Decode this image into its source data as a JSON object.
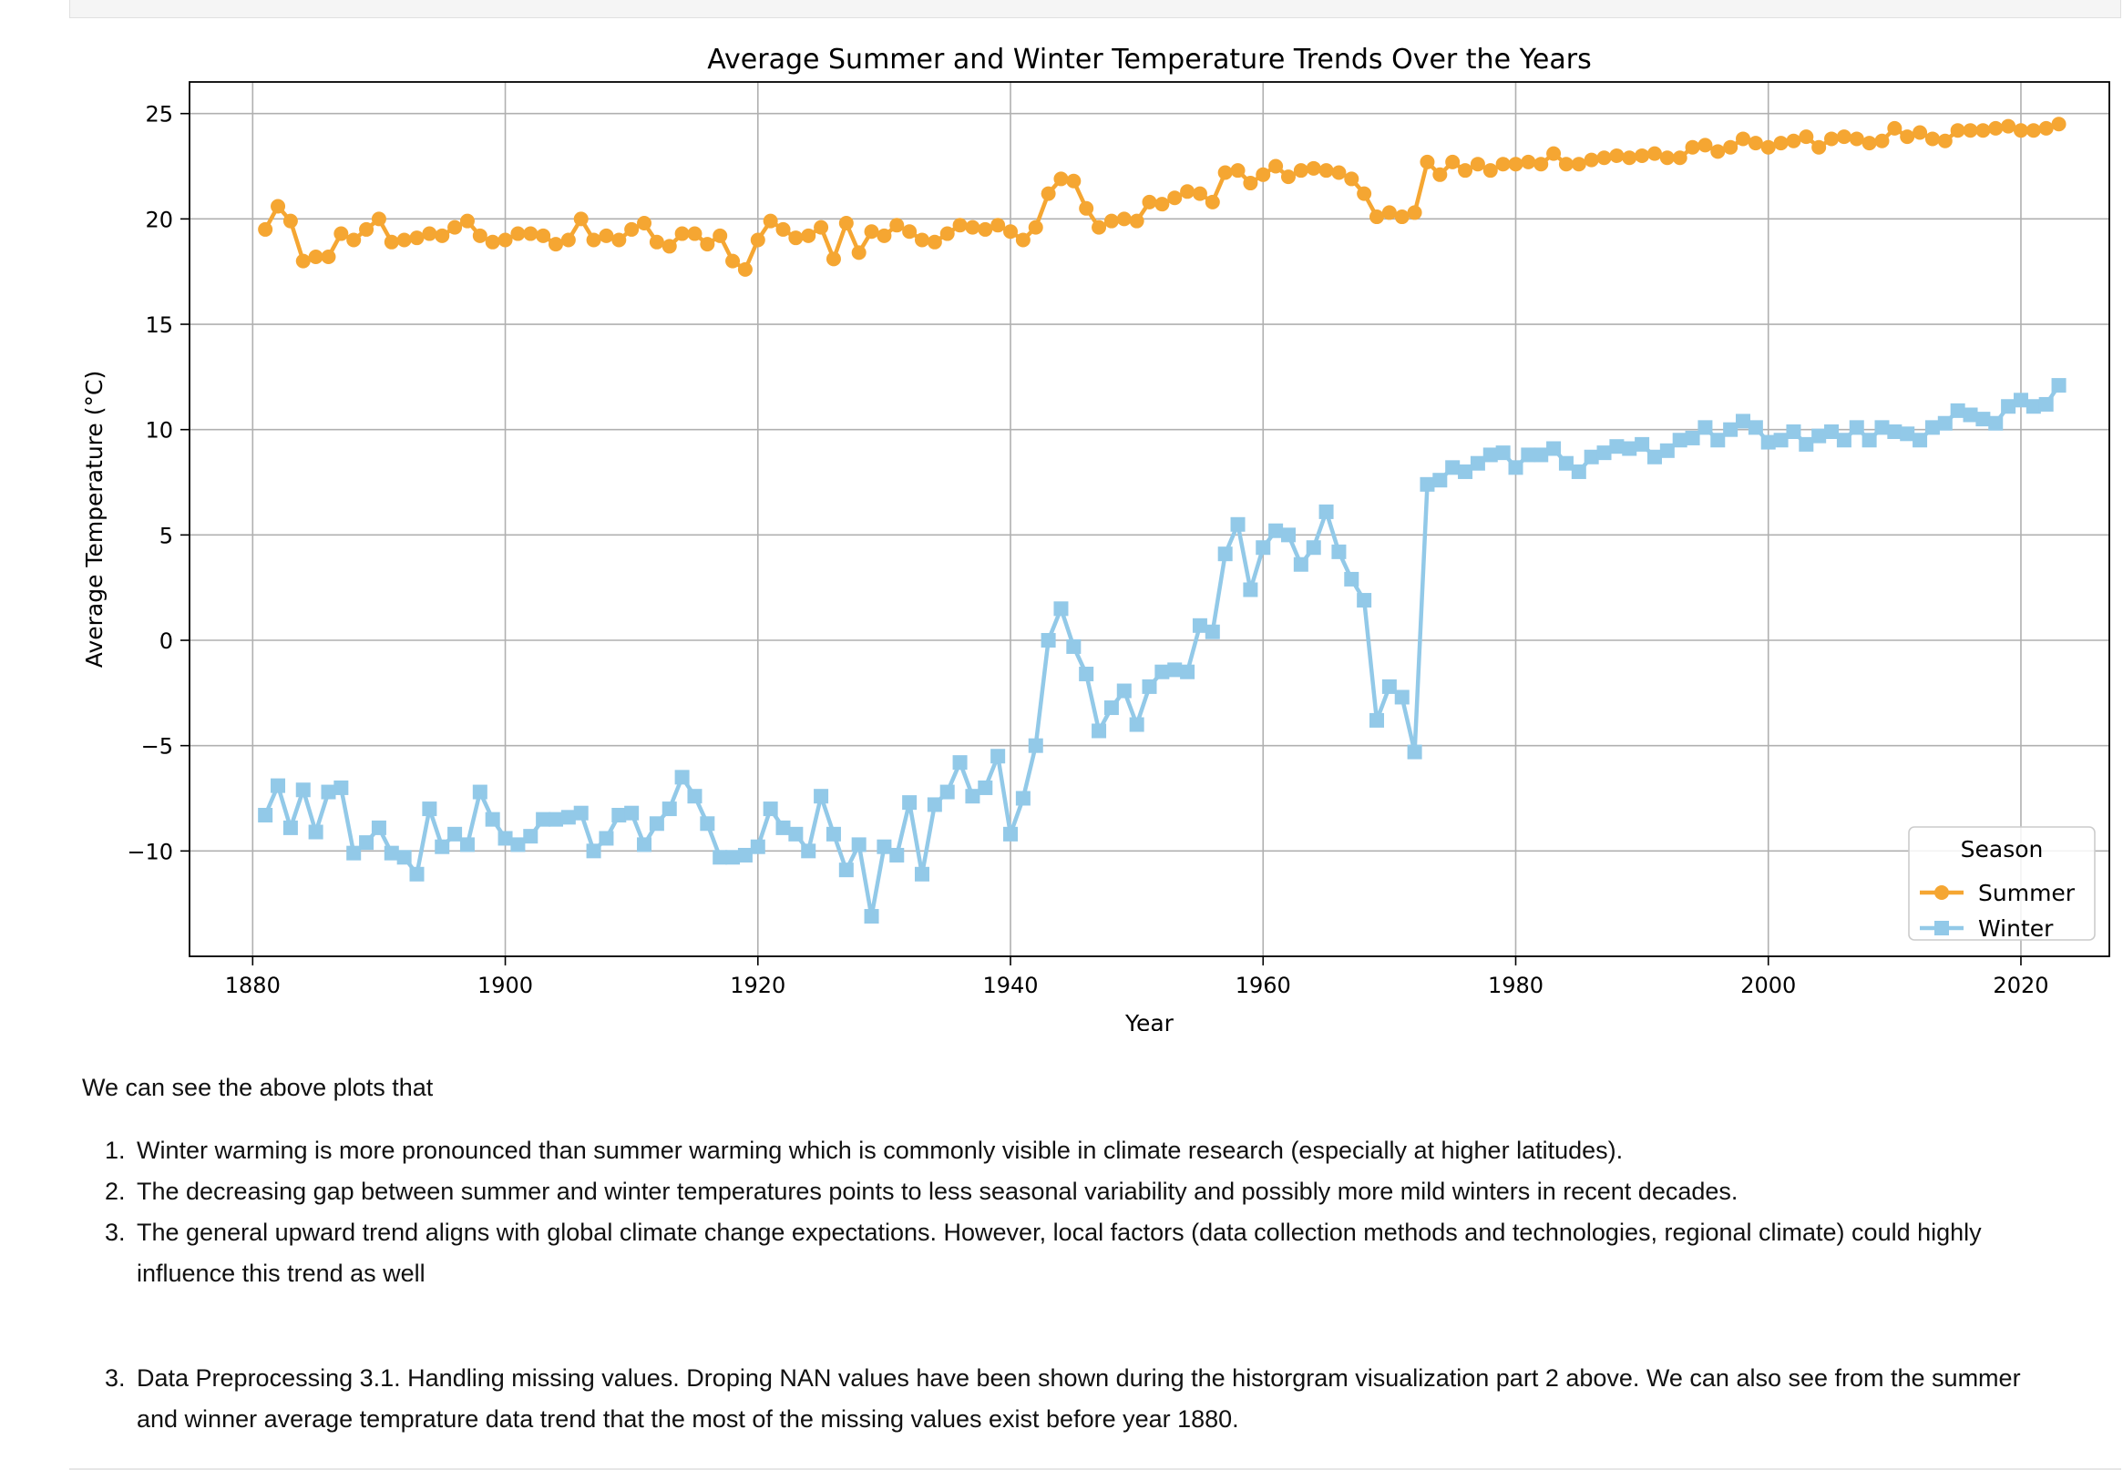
{
  "chart_data": {
    "type": "line",
    "title": "Average Summer and Winter Temperature Trends Over the Years",
    "xlabel": "Year",
    "ylabel": "Average Temperature (°C)",
    "xlim": [
      1875,
      2027
    ],
    "ylim": [
      -15,
      26.5
    ],
    "xticks": [
      1880,
      1900,
      1920,
      1940,
      1960,
      1980,
      2000,
      2020
    ],
    "yticks": [
      -10,
      -5,
      0,
      5,
      10,
      15,
      20,
      25
    ],
    "grid": true,
    "legend": {
      "title": "Season",
      "placement": "lower-right"
    },
    "x": [
      1881,
      1882,
      1883,
      1884,
      1885,
      1886,
      1887,
      1888,
      1889,
      1890,
      1891,
      1892,
      1893,
      1894,
      1895,
      1896,
      1897,
      1898,
      1899,
      1900,
      1901,
      1902,
      1903,
      1904,
      1905,
      1906,
      1907,
      1908,
      1909,
      1910,
      1911,
      1912,
      1913,
      1914,
      1915,
      1916,
      1917,
      1918,
      1919,
      1920,
      1921,
      1922,
      1923,
      1924,
      1925,
      1926,
      1927,
      1928,
      1929,
      1930,
      1931,
      1932,
      1933,
      1934,
      1935,
      1936,
      1937,
      1938,
      1939,
      1940,
      1941,
      1942,
      1943,
      1944,
      1945,
      1946,
      1947,
      1948,
      1949,
      1950,
      1951,
      1952,
      1953,
      1954,
      1955,
      1956,
      1957,
      1958,
      1959,
      1960,
      1961,
      1962,
      1963,
      1964,
      1965,
      1966,
      1967,
      1968,
      1969,
      1970,
      1971,
      1972,
      1973,
      1974,
      1975,
      1976,
      1977,
      1978,
      1979,
      1980,
      1981,
      1982,
      1983,
      1984,
      1985,
      1986,
      1987,
      1988,
      1989,
      1990,
      1991,
      1992,
      1993,
      1994,
      1995,
      1996,
      1997,
      1998,
      1999,
      2000,
      2001,
      2002,
      2003,
      2004,
      2005,
      2006,
      2007,
      2008,
      2009,
      2010,
      2011,
      2012,
      2013,
      2014,
      2015,
      2016,
      2017,
      2018,
      2019,
      2020,
      2021,
      2022,
      2023
    ],
    "series": [
      {
        "name": "Summer",
        "color": "#f5a632",
        "marker": "circle",
        "values": [
          19.5,
          20.6,
          19.9,
          18.0,
          18.2,
          18.2,
          19.3,
          19.0,
          19.5,
          20.0,
          18.9,
          19.0,
          19.1,
          19.3,
          19.2,
          19.6,
          19.9,
          19.2,
          18.9,
          19.0,
          19.3,
          19.3,
          19.2,
          18.8,
          19.0,
          20.0,
          19.0,
          19.2,
          19.0,
          19.5,
          19.8,
          18.9,
          18.7,
          19.3,
          19.3,
          18.8,
          19.2,
          18.0,
          17.6,
          19.0,
          19.9,
          19.5,
          19.1,
          19.2,
          19.6,
          18.1,
          19.8,
          18.4,
          19.4,
          19.2,
          19.7,
          19.4,
          19.0,
          18.9,
          19.3,
          19.7,
          19.6,
          19.5,
          19.7,
          19.4,
          19.0,
          19.6,
          21.2,
          21.9,
          21.8,
          20.5,
          19.6,
          19.9,
          20.0,
          19.9,
          20.8,
          20.7,
          21.0,
          21.3,
          21.2,
          20.8,
          22.2,
          22.3,
          21.7,
          22.1,
          22.5,
          22.0,
          22.3,
          22.4,
          22.3,
          22.2,
          21.9,
          21.2,
          20.1,
          20.3,
          20.1,
          20.3,
          22.7,
          22.1,
          22.7,
          22.3,
          22.6,
          22.3,
          22.6,
          22.6,
          22.7,
          22.6,
          23.1,
          22.6,
          22.6,
          22.8,
          22.9,
          23.0,
          22.9,
          23.0,
          23.1,
          22.9,
          22.9,
          23.4,
          23.5,
          23.2,
          23.4,
          23.8,
          23.6,
          23.4,
          23.6,
          23.7,
          23.9,
          23.4,
          23.8,
          23.9,
          23.8,
          23.6,
          23.7,
          24.3,
          23.9,
          24.1,
          23.8,
          23.7,
          24.2,
          24.2,
          24.2,
          24.3,
          24.4,
          24.2,
          24.2,
          24.3,
          24.5
        ]
      },
      {
        "name": "Winter",
        "color": "#92c9e8",
        "marker": "square",
        "values": [
          -8.3,
          -6.9,
          -8.9,
          -7.1,
          -9.1,
          -7.2,
          -7.0,
          -10.1,
          -9.6,
          -8.9,
          -10.1,
          -10.3,
          -11.1,
          -8.0,
          -9.8,
          -9.2,
          -9.7,
          -7.2,
          -8.5,
          -9.4,
          -9.7,
          -9.3,
          -8.5,
          -8.5,
          -8.4,
          -8.2,
          -10.0,
          -9.4,
          -8.3,
          -8.2,
          -9.7,
          -8.7,
          -8.0,
          -6.5,
          -7.4,
          -8.7,
          -10.3,
          -10.3,
          -10.2,
          -9.8,
          -8.0,
          -8.9,
          -9.2,
          -10.0,
          -7.4,
          -9.2,
          -10.9,
          -9.7,
          -13.1,
          -9.8,
          -10.2,
          -7.7,
          -11.1,
          -7.8,
          -7.2,
          -5.8,
          -7.4,
          -7.0,
          -5.5,
          -9.2,
          -7.5,
          -5.0,
          0.0,
          1.5,
          -0.3,
          -1.6,
          -4.3,
          -3.2,
          -2.4,
          -4.0,
          -2.2,
          -1.5,
          -1.4,
          -1.5,
          0.7,
          0.4,
          4.1,
          5.5,
          2.4,
          4.4,
          5.2,
          5.0,
          3.6,
          4.4,
          6.1,
          4.2,
          2.9,
          1.9,
          -3.8,
          -2.2,
          -2.7,
          -5.3,
          7.4,
          7.6,
          8.2,
          8.0,
          8.4,
          8.8,
          8.9,
          8.2,
          8.8,
          8.8,
          9.1,
          8.4,
          8.0,
          8.7,
          8.9,
          9.2,
          9.1,
          9.3,
          8.7,
          9.0,
          9.5,
          9.6,
          10.1,
          9.5,
          10.0,
          10.4,
          10.1,
          9.4,
          9.5,
          9.9,
          9.3,
          9.7,
          9.9,
          9.5,
          10.1,
          9.5,
          10.1,
          9.9,
          9.8,
          9.5,
          10.1,
          10.3,
          10.9,
          10.7,
          10.5,
          10.3,
          11.1,
          11.4,
          11.1,
          11.2,
          12.1
        ]
      }
    ]
  },
  "notes": {
    "intro": "We can see the above plots that",
    "points": [
      "Winter warming is more pronounced than summer warming which is commonly visible in climate research (especially at higher latitudes).",
      "The decreasing gap between summer and winter temperatures points to less seasonal variability and possibly more mild winters in recent decades.",
      "The general upward trend aligns with global climate change expectations. However, local factors (data collection methods and technologies, regional climate) could highly influence this trend as well"
    ],
    "section": "Data Preprocessing 3.1. Handling missing values. Droping NAN values have been shown during the historgram visualization part 2 above. We can also see from the summer and winner average temprature data trend that the most of the missing values exist before year 1880."
  }
}
